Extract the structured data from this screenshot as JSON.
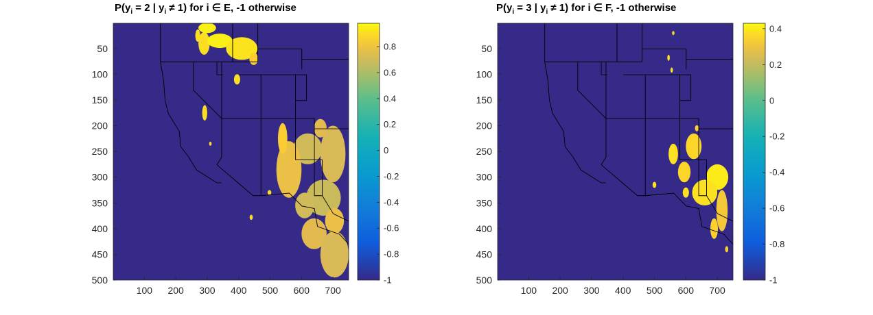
{
  "chart_data": [
    {
      "type": "heatmap",
      "title": "P(y_i = 2 | y_i ≠ 1) for i ∈ E, -1 otherwise",
      "title_main": "P(y",
      "title_sub1": "i",
      "title_mid": " = 2 | y",
      "title_sub2": "i",
      "title_end": " ≠ 1) for i ∈ E, -1 otherwise",
      "xlim": [
        1,
        750
      ],
      "ylim": [
        1,
        500
      ],
      "y_reversed": true,
      "x_ticks": [
        100,
        200,
        300,
        400,
        500,
        600,
        700
      ],
      "y_ticks": [
        50,
        100,
        150,
        200,
        250,
        300,
        350,
        400,
        450,
        500
      ],
      "clim": [
        -1,
        0.98
      ],
      "colorbar_ticks": [
        -1,
        -0.8,
        -0.6,
        -0.4,
        -0.2,
        0,
        0.2,
        0.4,
        0.6,
        0.8
      ],
      "colorbar_ticks_label": [
        "-1",
        "-0.8",
        "-0.6",
        "-0.4",
        "-0.2",
        "0",
        "0.2",
        "0.4",
        "0.6",
        "0.8"
      ],
      "colormap": "parula",
      "background_value": -1,
      "blobs": [
        {
          "x": 290,
          "y": 40,
          "rx": 18,
          "ry": 22,
          "value": 0.9
        },
        {
          "x": 340,
          "y": 35,
          "rx": 40,
          "ry": 14,
          "value": 0.95
        },
        {
          "x": 270,
          "y": 25,
          "rx": 8,
          "ry": 12,
          "value": 0.9
        },
        {
          "x": 410,
          "y": 50,
          "rx": 50,
          "ry": 22,
          "value": 0.92
        },
        {
          "x": 448,
          "y": 70,
          "rx": 14,
          "ry": 12,
          "value": 0.85
        },
        {
          "x": 395,
          "y": 110,
          "rx": 10,
          "ry": 10,
          "value": 0.9
        },
        {
          "x": 292,
          "y": 175,
          "rx": 8,
          "ry": 15,
          "value": 0.9
        },
        {
          "x": 310,
          "y": 235,
          "rx": 4,
          "ry": 4,
          "value": 0.9
        },
        {
          "x": 300,
          "y": 10,
          "rx": 28,
          "ry": 10,
          "value": 0.95
        },
        {
          "x": 700,
          "y": 255,
          "rx": 40,
          "ry": 55,
          "value": 0.72
        },
        {
          "x": 620,
          "y": 245,
          "rx": 45,
          "ry": 30,
          "value": 0.7
        },
        {
          "x": 560,
          "y": 285,
          "rx": 40,
          "ry": 55,
          "value": 0.78
        },
        {
          "x": 670,
          "y": 340,
          "rx": 55,
          "ry": 35,
          "value": 0.68
        },
        {
          "x": 610,
          "y": 355,
          "rx": 30,
          "ry": 25,
          "value": 0.7
        },
        {
          "x": 640,
          "y": 410,
          "rx": 40,
          "ry": 30,
          "value": 0.75
        },
        {
          "x": 705,
          "y": 450,
          "rx": 45,
          "ry": 45,
          "value": 0.72
        },
        {
          "x": 705,
          "y": 385,
          "rx": 30,
          "ry": 25,
          "value": 0.78
        },
        {
          "x": 540,
          "y": 225,
          "rx": 15,
          "ry": 30,
          "value": 0.85
        },
        {
          "x": 660,
          "y": 205,
          "rx": 20,
          "ry": 18,
          "value": 0.75
        },
        {
          "x": 440,
          "y": 378,
          "rx": 5,
          "ry": 5,
          "value": 0.9
        },
        {
          "x": 498,
          "y": 330,
          "rx": 6,
          "ry": 5,
          "value": 0.9
        }
      ]
    },
    {
      "type": "heatmap",
      "title": "P(y_i = 3 | y_i ≠ 1) for i ∈ F, -1 otherwise",
      "title_main": "P(y",
      "title_sub1": "i",
      "title_mid": " = 3 | y",
      "title_sub2": "i",
      "title_end": " ≠ 1) for i ∈ F, -1 otherwise",
      "xlim": [
        1,
        750
      ],
      "ylim": [
        1,
        500
      ],
      "y_reversed": true,
      "x_ticks": [
        100,
        200,
        300,
        400,
        500,
        600,
        700
      ],
      "y_ticks": [
        50,
        100,
        150,
        200,
        250,
        300,
        350,
        400,
        450,
        500
      ],
      "clim": [
        -1,
        0.43
      ],
      "colorbar_ticks": [
        -1,
        -0.8,
        -0.6,
        -0.4,
        -0.2,
        0,
        0.2,
        0.4
      ],
      "colorbar_ticks_label": [
        "-1",
        "-0.8",
        "-0.6",
        "-0.4",
        "-0.2",
        "0",
        "0.2",
        "0.4"
      ],
      "colormap": "parula",
      "background_value": -1,
      "blobs": [
        {
          "x": 625,
          "y": 240,
          "rx": 25,
          "ry": 25,
          "value": 0.36
        },
        {
          "x": 560,
          "y": 255,
          "rx": 15,
          "ry": 20,
          "value": 0.38
        },
        {
          "x": 595,
          "y": 290,
          "rx": 20,
          "ry": 20,
          "value": 0.36
        },
        {
          "x": 700,
          "y": 300,
          "rx": 35,
          "ry": 25,
          "value": 0.4
        },
        {
          "x": 660,
          "y": 330,
          "rx": 40,
          "ry": 25,
          "value": 0.38
        },
        {
          "x": 715,
          "y": 365,
          "rx": 18,
          "ry": 40,
          "value": 0.32
        },
        {
          "x": 690,
          "y": 400,
          "rx": 12,
          "ry": 20,
          "value": 0.35
        },
        {
          "x": 600,
          "y": 330,
          "rx": 10,
          "ry": 10,
          "value": 0.38
        },
        {
          "x": 635,
          "y": 205,
          "rx": 6,
          "ry": 6,
          "value": 0.35
        },
        {
          "x": 545,
          "y": 68,
          "rx": 4,
          "ry": 6,
          "value": 0.38
        },
        {
          "x": 555,
          "y": 92,
          "rx": 4,
          "ry": 5,
          "value": 0.38
        },
        {
          "x": 560,
          "y": 20,
          "rx": 4,
          "ry": 4,
          "value": 0.36
        },
        {
          "x": 500,
          "y": 315,
          "rx": 6,
          "ry": 6,
          "value": 0.38
        },
        {
          "x": 730,
          "y": 440,
          "rx": 5,
          "ry": 6,
          "value": 0.35
        }
      ]
    }
  ]
}
